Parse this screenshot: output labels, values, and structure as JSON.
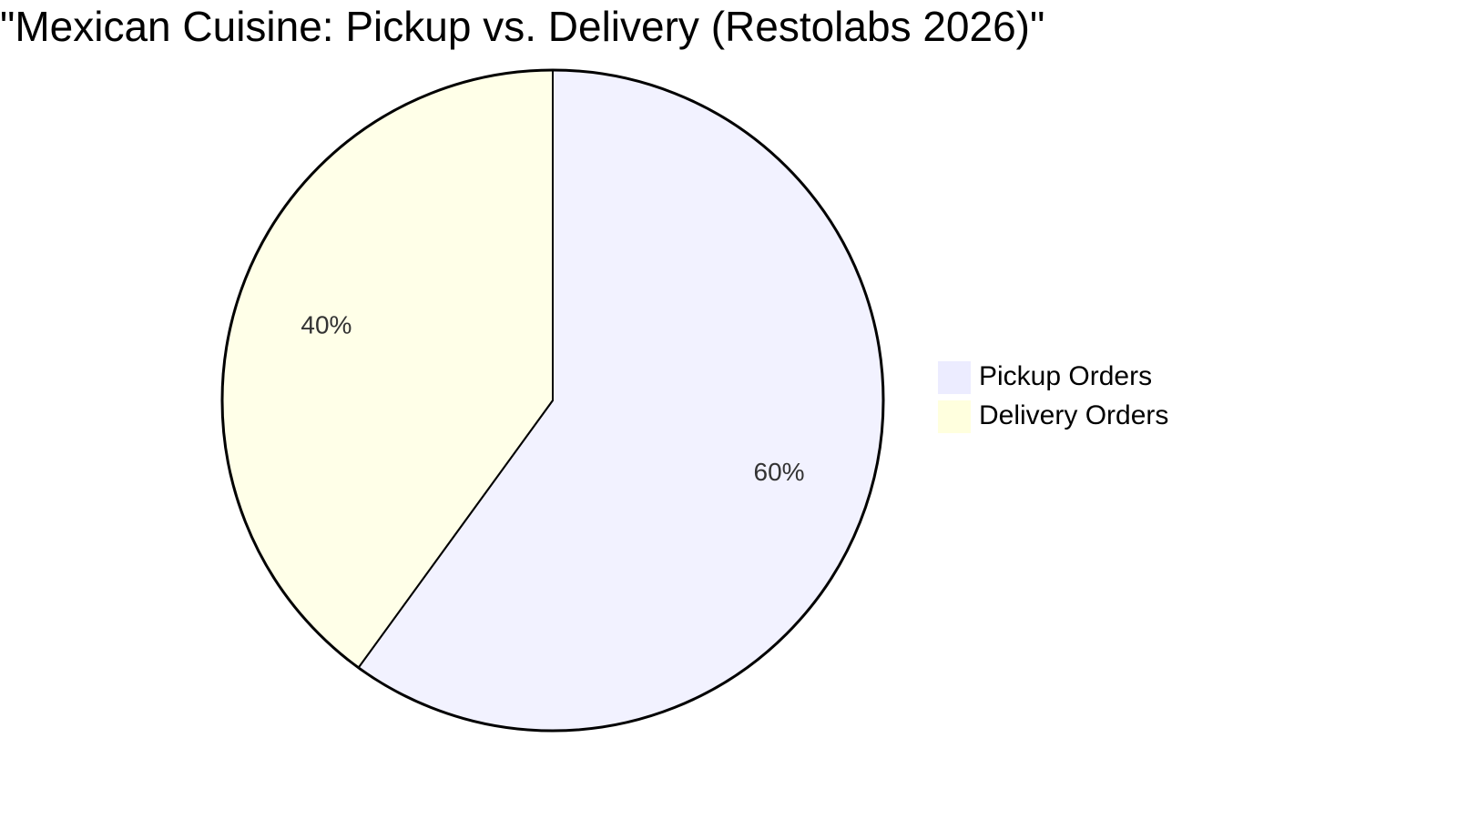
{
  "chart_data": {
    "type": "pie",
    "title": "\"Mexican Cuisine: Pickup vs. Delivery (Restolabs 2026)\"",
    "categories": [
      "Pickup Orders",
      "Delivery Orders"
    ],
    "values": [
      60,
      40
    ],
    "value_labels": [
      "60%",
      "40%"
    ],
    "colors": [
      "#ECECFF",
      "#FFFFDE"
    ],
    "legend": "right"
  }
}
